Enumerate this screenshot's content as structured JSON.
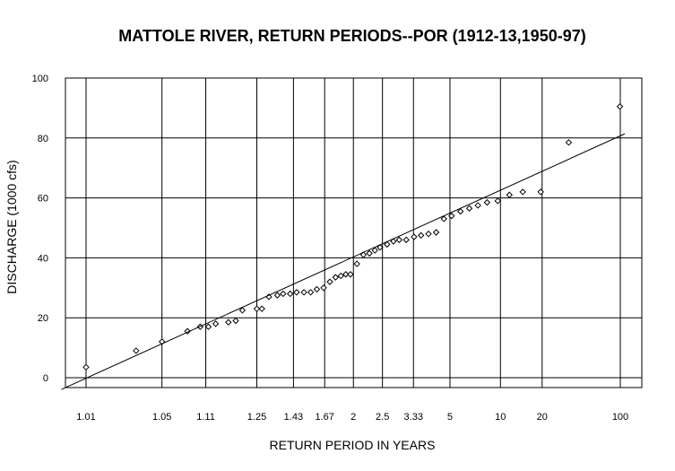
{
  "chart_data": {
    "type": "scatter",
    "title": "MATTOLE RIVER, RETURN PERIODS--POR (1912-13,1950-97)",
    "xlabel": "RETURN PERIOD IN YEARS",
    "ylabel": "DISCHARGE (1000 cfs)",
    "x_scale": "probability",
    "x_ticks": [
      "1.01",
      "1.05",
      "1.11",
      "1.25",
      "1.43",
      "1.67",
      "2",
      "2.5",
      "3.33",
      "5",
      "10",
      "20",
      "100"
    ],
    "y_ticks": [
      "0",
      "20",
      "40",
      "60",
      "80",
      "100"
    ],
    "ylim": [
      0,
      100
    ],
    "grid": true,
    "series": [
      {
        "kind": "points",
        "marker": "diamond",
        "x": [
          1.01,
          1.03,
          1.05,
          1.08,
          1.1,
          1.115,
          1.13,
          1.16,
          1.18,
          1.2,
          1.25,
          1.27,
          1.3,
          1.34,
          1.37,
          1.41,
          1.45,
          1.5,
          1.55,
          1.6,
          1.66,
          1.72,
          1.78,
          1.84,
          1.9,
          1.96,
          2.05,
          2.15,
          2.25,
          2.35,
          2.45,
          2.6,
          2.75,
          2.9,
          3.1,
          3.35,
          3.6,
          3.9,
          4.25,
          4.65,
          5.1,
          5.7,
          6.4,
          7.2,
          8.2,
          9.6,
          11.5,
          14.3,
          19.5,
          33,
          99
        ],
        "y": [
          3.5,
          9,
          12,
          15.5,
          17,
          17,
          18,
          18.5,
          19,
          22.5,
          23,
          23,
          27,
          27.5,
          28,
          28,
          28.5,
          28.5,
          28.5,
          29.5,
          30,
          32,
          33.5,
          34,
          34.5,
          34.5,
          38,
          41,
          41.5,
          42.5,
          43.5,
          44.5,
          45.5,
          46,
          46,
          47,
          47.5,
          48,
          48.5,
          53,
          54,
          55.5,
          56.5,
          57.5,
          58.5,
          59,
          61,
          62,
          62,
          78.5,
          90.5
        ]
      },
      {
        "kind": "trend-line",
        "x": [
          1.0055,
          111
        ],
        "y": [
          -3.9,
          81.4
        ]
      }
    ],
    "colors": {
      "axis": "#000000",
      "grid": "#000000",
      "points": "#000000",
      "background": "#ffffff"
    }
  }
}
